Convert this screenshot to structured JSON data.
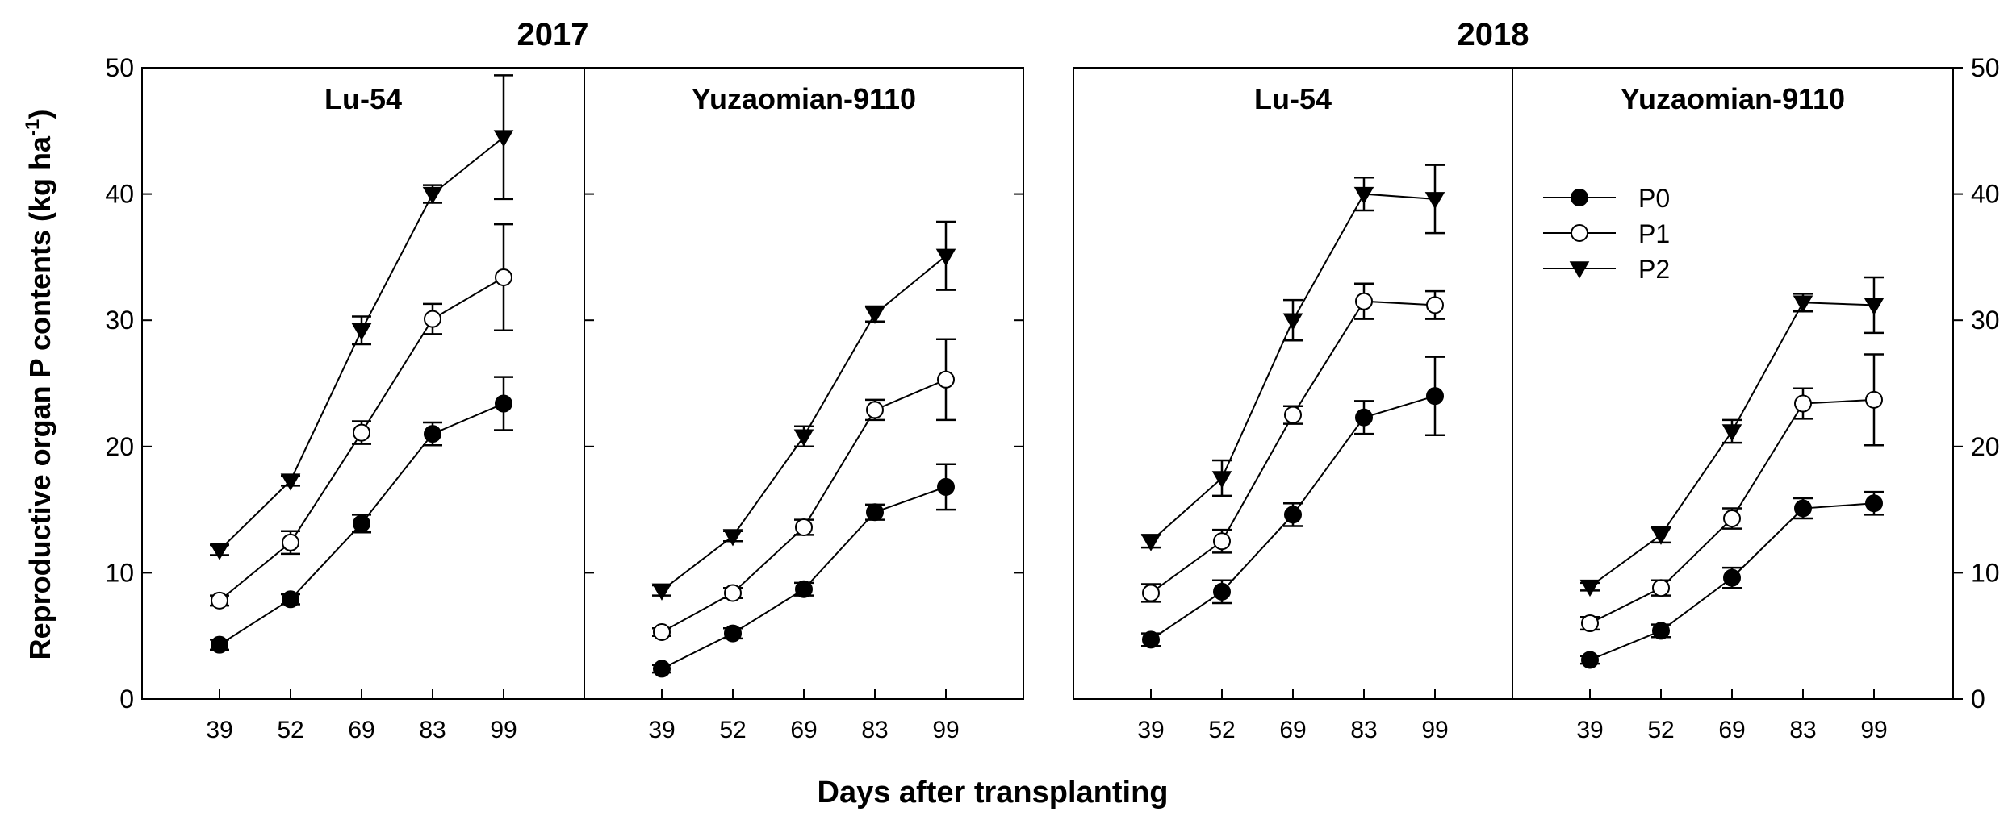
{
  "figure": {
    "ylabel": "Reproductive organ P contents (kg ha",
    "ylabel_sup": "-1",
    "ylabel_close": ")",
    "xlabel": "Days after transplanting"
  },
  "legend": {
    "entries": [
      {
        "name": "P0",
        "marker": "filled-circle"
      },
      {
        "name": "P1",
        "marker": "open-circle"
      },
      {
        "name": "P2",
        "marker": "filled-down-triangle"
      }
    ]
  },
  "chart_data": [
    {
      "type": "line",
      "year": "2017",
      "title": "Lu-54",
      "x": [
        39,
        52,
        69,
        83,
        99
      ],
      "ylim": [
        0,
        50
      ],
      "yticks": [
        0,
        10,
        20,
        30,
        40,
        50
      ],
      "series": [
        {
          "name": "P0",
          "values": [
            4.3,
            7.9,
            13.9,
            21.0,
            23.4
          ],
          "errors": [
            0.4,
            0.4,
            0.7,
            0.9,
            2.1
          ]
        },
        {
          "name": "P1",
          "values": [
            7.8,
            12.4,
            21.1,
            30.1,
            33.4
          ],
          "errors": [
            0.4,
            0.9,
            0.9,
            1.2,
            4.2
          ]
        },
        {
          "name": "P2",
          "values": [
            11.8,
            17.3,
            29.2,
            40.0,
            44.5
          ],
          "errors": [
            0.4,
            0.4,
            1.1,
            0.7,
            4.9
          ]
        }
      ]
    },
    {
      "type": "line",
      "year": "2017",
      "title": "Yuzaomian-9110",
      "x": [
        39,
        52,
        69,
        83,
        99
      ],
      "ylim": [
        0,
        50
      ],
      "yticks": [
        0,
        10,
        20,
        30,
        40,
        50
      ],
      "series": [
        {
          "name": "P0",
          "values": [
            2.4,
            5.2,
            8.7,
            14.8,
            16.8
          ],
          "errors": [
            0.3,
            0.4,
            0.5,
            0.6,
            1.8
          ]
        },
        {
          "name": "P1",
          "values": [
            5.3,
            8.4,
            13.6,
            22.9,
            25.3
          ],
          "errors": [
            0.3,
            0.4,
            0.6,
            0.8,
            3.2
          ]
        },
        {
          "name": "P2",
          "values": [
            8.6,
            12.9,
            20.8,
            30.5,
            35.1
          ],
          "errors": [
            0.4,
            0.4,
            0.8,
            0.6,
            2.7
          ]
        }
      ]
    },
    {
      "type": "line",
      "year": "2018",
      "title": "Lu-54",
      "x": [
        39,
        52,
        69,
        83,
        99
      ],
      "ylim": [
        0,
        50
      ],
      "yticks": [
        0,
        10,
        20,
        30,
        40,
        50
      ],
      "series": [
        {
          "name": "P0",
          "values": [
            4.7,
            8.5,
            14.6,
            22.3,
            24.0
          ],
          "errors": [
            0.5,
            0.9,
            0.9,
            1.3,
            3.1
          ]
        },
        {
          "name": "P1",
          "values": [
            8.4,
            12.5,
            22.5,
            31.5,
            31.2
          ],
          "errors": [
            0.7,
            0.9,
            0.7,
            1.4,
            1.1
          ]
        },
        {
          "name": "P2",
          "values": [
            12.5,
            17.5,
            30.0,
            40.0,
            39.6
          ],
          "errors": [
            0.5,
            1.4,
            1.6,
            1.3,
            2.7
          ]
        }
      ]
    },
    {
      "type": "line",
      "year": "2018",
      "title": "Yuzaomian-9110",
      "x": [
        39,
        52,
        69,
        83,
        99
      ],
      "ylim": [
        0,
        50
      ],
      "yticks": [
        0,
        10,
        20,
        30,
        40,
        50
      ],
      "series": [
        {
          "name": "P0",
          "values": [
            3.1,
            5.4,
            9.6,
            15.1,
            15.5
          ],
          "errors": [
            0.3,
            0.5,
            0.8,
            0.8,
            0.9
          ]
        },
        {
          "name": "P1",
          "values": [
            6.0,
            8.8,
            14.3,
            23.4,
            23.7
          ],
          "errors": [
            0.5,
            0.6,
            0.8,
            1.2,
            3.6
          ]
        },
        {
          "name": "P2",
          "values": [
            8.9,
            13.0,
            21.2,
            31.4,
            31.2
          ],
          "errors": [
            0.3,
            0.6,
            0.9,
            0.7,
            2.2
          ]
        }
      ]
    }
  ]
}
